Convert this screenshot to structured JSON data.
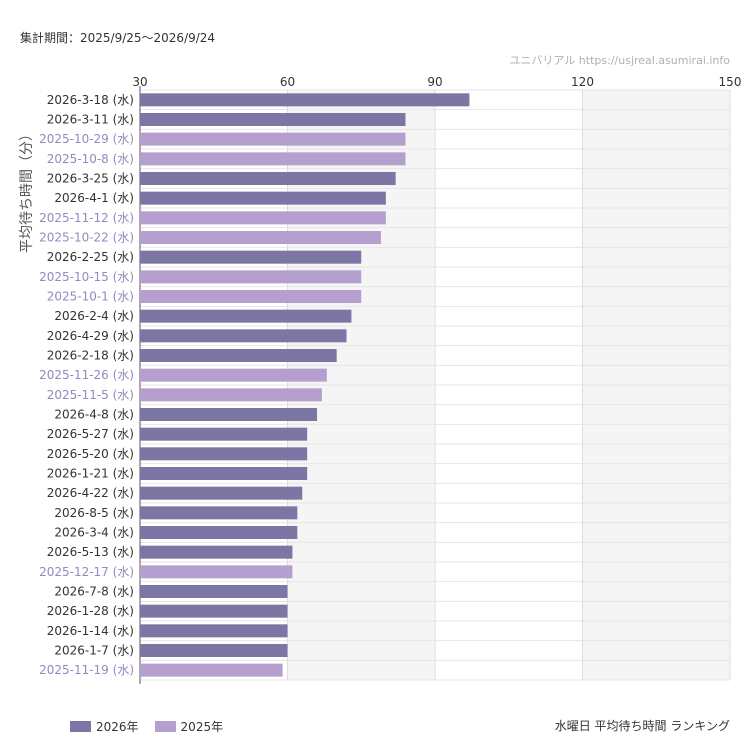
{
  "header": {
    "period": "集計期間：2025/9/25〜2026/9/24",
    "source": "ユニバリアル  https://usjreal.asumirai.info"
  },
  "footer": {
    "caption": "水曜日 平均待ち時間 ランキング"
  },
  "colors": {
    "y2026": "#7b76a3",
    "y2025": "#b49fcf",
    "label2026": "#333333",
    "label2025": "#9a86c0"
  },
  "chart_data": {
    "type": "bar",
    "orientation": "horizontal",
    "ylabel": "平均待ち時間（分）",
    "xlim": [
      30,
      150
    ],
    "xticks": [
      30,
      60,
      90,
      120,
      150
    ],
    "grid": true,
    "legend_position": "bottom-left",
    "series": [
      {
        "name": "2026年",
        "color": "#7b76a3"
      },
      {
        "name": "2025年",
        "color": "#b49fcf"
      }
    ],
    "categories": [
      "2026-3-18 (水)",
      "2026-3-11 (水)",
      "2025-10-29 (水)",
      "2025-10-8 (水)",
      "2026-3-25 (水)",
      "2026-4-1 (水)",
      "2025-11-12 (水)",
      "2025-10-22 (水)",
      "2026-2-25 (水)",
      "2025-10-15 (水)",
      "2025-10-1 (水)",
      "2026-2-4 (水)",
      "2026-4-29 (水)",
      "2026-2-18 (水)",
      "2025-11-26 (水)",
      "2025-11-5 (水)",
      "2026-4-8 (水)",
      "2026-5-27 (水)",
      "2026-5-20 (水)",
      "2026-1-21 (水)",
      "2026-4-22 (水)",
      "2026-8-5 (水)",
      "2026-3-4 (水)",
      "2026-5-13 (水)",
      "2025-12-17 (水)",
      "2026-7-8 (水)",
      "2026-1-28 (水)",
      "2026-1-14 (水)",
      "2026-1-7 (水)",
      "2025-11-19 (水)"
    ],
    "years": [
      "2026",
      "2026",
      "2025",
      "2025",
      "2026",
      "2026",
      "2025",
      "2025",
      "2026",
      "2025",
      "2025",
      "2026",
      "2026",
      "2026",
      "2025",
      "2025",
      "2026",
      "2026",
      "2026",
      "2026",
      "2026",
      "2026",
      "2026",
      "2026",
      "2025",
      "2026",
      "2026",
      "2026",
      "2026",
      "2025"
    ],
    "values": [
      97,
      84,
      84,
      84,
      82,
      80,
      80,
      79,
      75,
      75,
      75,
      73,
      72,
      70,
      68,
      67,
      66,
      64,
      64,
      64,
      63,
      62,
      62,
      61,
      61,
      60,
      60,
      60,
      60,
      59
    ]
  }
}
